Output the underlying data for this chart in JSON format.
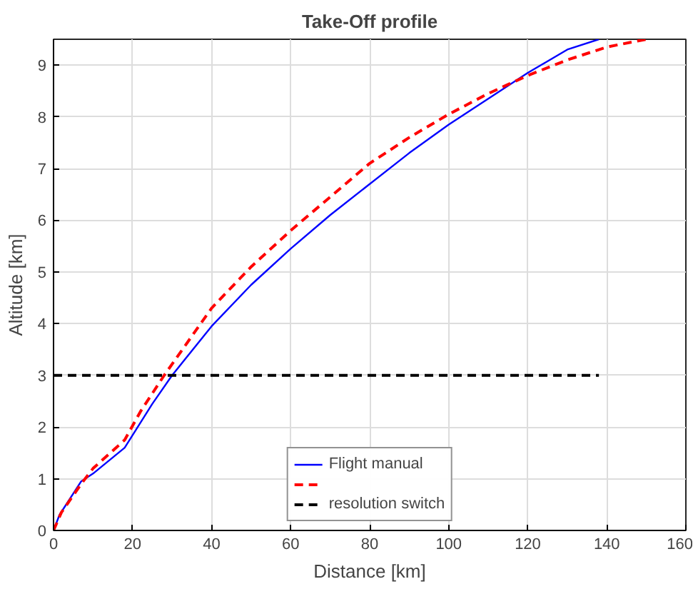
{
  "chart_data": {
    "type": "line",
    "title": "Take-Off profile",
    "xlabel": "Distance [km]",
    "ylabel": "Altitude [km]",
    "xlim": [
      0,
      160
    ],
    "xticks": [
      0,
      20,
      40,
      60,
      80,
      100,
      120,
      140,
      160
    ],
    "ylim": [
      0,
      9.5
    ],
    "yticks": [
      0,
      1,
      2,
      3,
      4,
      5,
      6,
      7,
      8,
      9
    ],
    "grid": true,
    "legend": "bottom",
    "series": [
      {
        "name": "Flight manual",
        "color": "#0000ff",
        "line_style": "solid",
        "x": [
          0,
          1.5,
          7,
          10,
          18,
          25,
          30,
          40,
          50,
          60,
          70,
          80,
          90,
          100,
          110,
          120,
          130,
          138
        ],
        "values": [
          0,
          0.3,
          0.95,
          1.1,
          1.6,
          2.45,
          3.0,
          3.95,
          4.75,
          5.45,
          6.1,
          6.7,
          7.3,
          7.85,
          8.35,
          8.85,
          9.3,
          9.5
        ]
      },
      {
        "color": "#ff0000",
        "line_style": "dashed",
        "x": [
          0,
          2,
          7,
          10,
          18,
          22,
          28,
          40,
          50,
          60,
          70,
          80,
          90,
          100,
          110,
          120,
          130,
          140,
          150
        ],
        "values": [
          0,
          0.35,
          0.9,
          1.2,
          1.75,
          2.3,
          3.0,
          4.3,
          5.1,
          5.8,
          6.45,
          7.1,
          7.6,
          8.05,
          8.45,
          8.8,
          9.1,
          9.35,
          9.5
        ]
      },
      {
        "name": "resolution switch",
        "color": "#000000",
        "line_style": "dashed",
        "x": [
          0,
          138
        ],
        "values": [
          3,
          3
        ]
      }
    ]
  }
}
